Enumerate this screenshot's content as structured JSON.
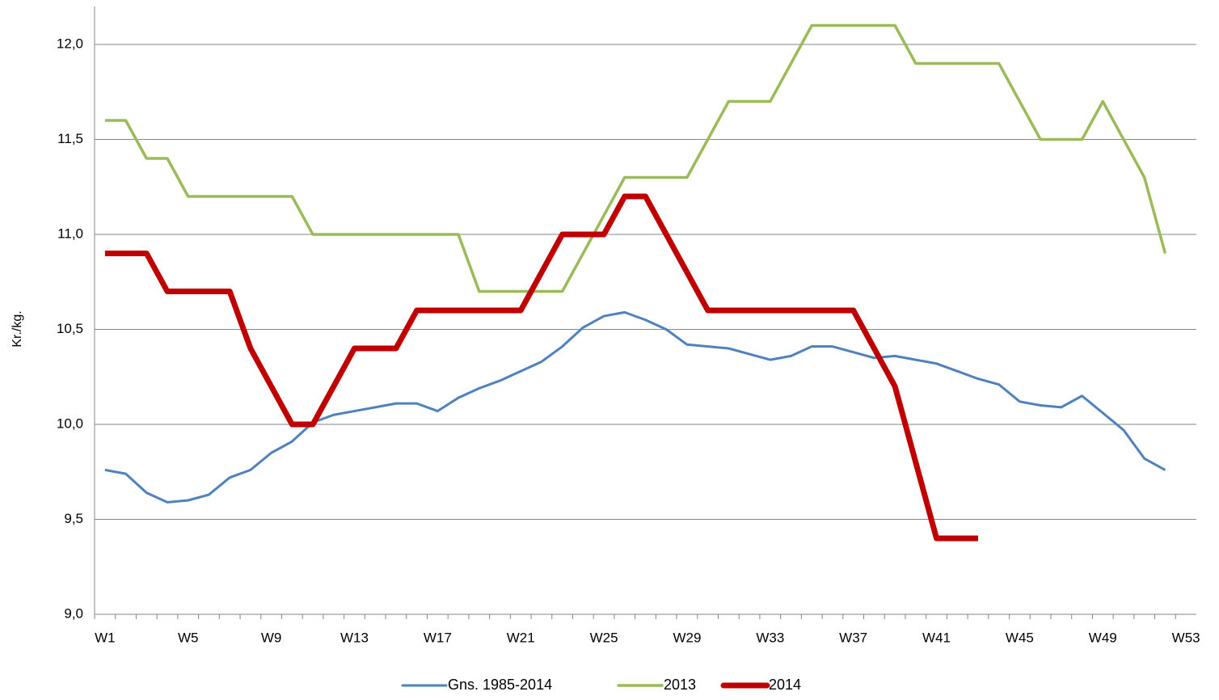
{
  "chart_data": {
    "type": "line",
    "y_label": "Kr./kg.",
    "categories": [
      "W1",
      null,
      null,
      null,
      "W5",
      null,
      null,
      null,
      "W9",
      null,
      null,
      null,
      "W13",
      null,
      null,
      null,
      "W17",
      null,
      null,
      null,
      "W21",
      null,
      null,
      null,
      "W25",
      null,
      null,
      null,
      "W29",
      null,
      null,
      null,
      "W33",
      null,
      null,
      null,
      "W37",
      null,
      null,
      null,
      "W41",
      null,
      null,
      null,
      "W45",
      null,
      null,
      null,
      "W49",
      null,
      null,
      null,
      "W53"
    ],
    "series": [
      {
        "name": "Gns. 1985-2014",
        "color": "#4f81bd",
        "width": 3,
        "values": [
          9.76,
          9.74,
          9.64,
          9.59,
          9.6,
          9.63,
          9.72,
          9.76,
          9.85,
          9.91,
          10.01,
          10.05,
          10.07,
          10.09,
          10.11,
          10.11,
          10.07,
          10.14,
          10.19,
          10.23,
          10.28,
          10.33,
          10.41,
          10.51,
          10.57,
          10.59,
          10.55,
          10.5,
          10.42,
          10.41,
          10.4,
          10.37,
          10.34,
          10.36,
          10.41,
          10.41,
          10.38,
          10.35,
          10.36,
          10.34,
          10.32,
          10.28,
          10.24,
          10.21,
          10.12,
          10.1,
          10.09,
          10.15,
          10.06,
          9.97,
          9.82,
          9.76,
          null
        ]
      },
      {
        "name": "2013",
        "color": "#9bbb59",
        "width": 3.5,
        "values": [
          11.6,
          11.6,
          11.4,
          11.4,
          11.2,
          11.2,
          11.2,
          11.2,
          11.2,
          11.2,
          11.0,
          11.0,
          11.0,
          11.0,
          11.0,
          11.0,
          11.0,
          11.0,
          10.7,
          10.7,
          10.7,
          10.7,
          10.7,
          10.9,
          11.1,
          11.3,
          11.3,
          11.3,
          11.3,
          11.5,
          11.7,
          11.7,
          11.7,
          11.9,
          12.1,
          12.1,
          12.1,
          12.1,
          12.1,
          11.9,
          11.9,
          11.9,
          11.9,
          11.9,
          11.7,
          11.5,
          11.5,
          11.5,
          11.7,
          11.5,
          11.3,
          10.9,
          null
        ]
      },
      {
        "name": "2014",
        "color": "#c00000",
        "width": 7,
        "values": [
          10.9,
          10.9,
          10.9,
          10.7,
          10.7,
          10.7,
          10.7,
          10.4,
          10.2,
          10.0,
          10.0,
          10.2,
          10.4,
          10.4,
          10.4,
          10.6,
          10.6,
          10.6,
          10.6,
          10.6,
          10.6,
          10.8,
          11.0,
          11.0,
          11.0,
          11.2,
          11.2,
          11.0,
          10.8,
          10.6,
          10.6,
          10.6,
          10.6,
          10.6,
          10.6,
          10.6,
          10.6,
          10.4,
          10.2,
          9.8,
          9.4,
          9.4,
          9.4,
          null,
          null,
          null,
          null,
          null,
          null,
          null,
          null,
          null,
          null
        ]
      }
    ],
    "ylim": [
      9,
      12.2
    ],
    "yticks": [
      {
        "value": 9,
        "label": "9,0"
      },
      {
        "value": 9.5,
        "label": "9,5"
      },
      {
        "value": 10,
        "label": "10,0"
      },
      {
        "value": 10.5,
        "label": "10,5"
      },
      {
        "value": 11,
        "label": "11,0"
      },
      {
        "value": 11.5,
        "label": "11,5"
      },
      {
        "value": 12,
        "label": "12,0"
      }
    ],
    "grid": true,
    "legend": "bottom"
  }
}
